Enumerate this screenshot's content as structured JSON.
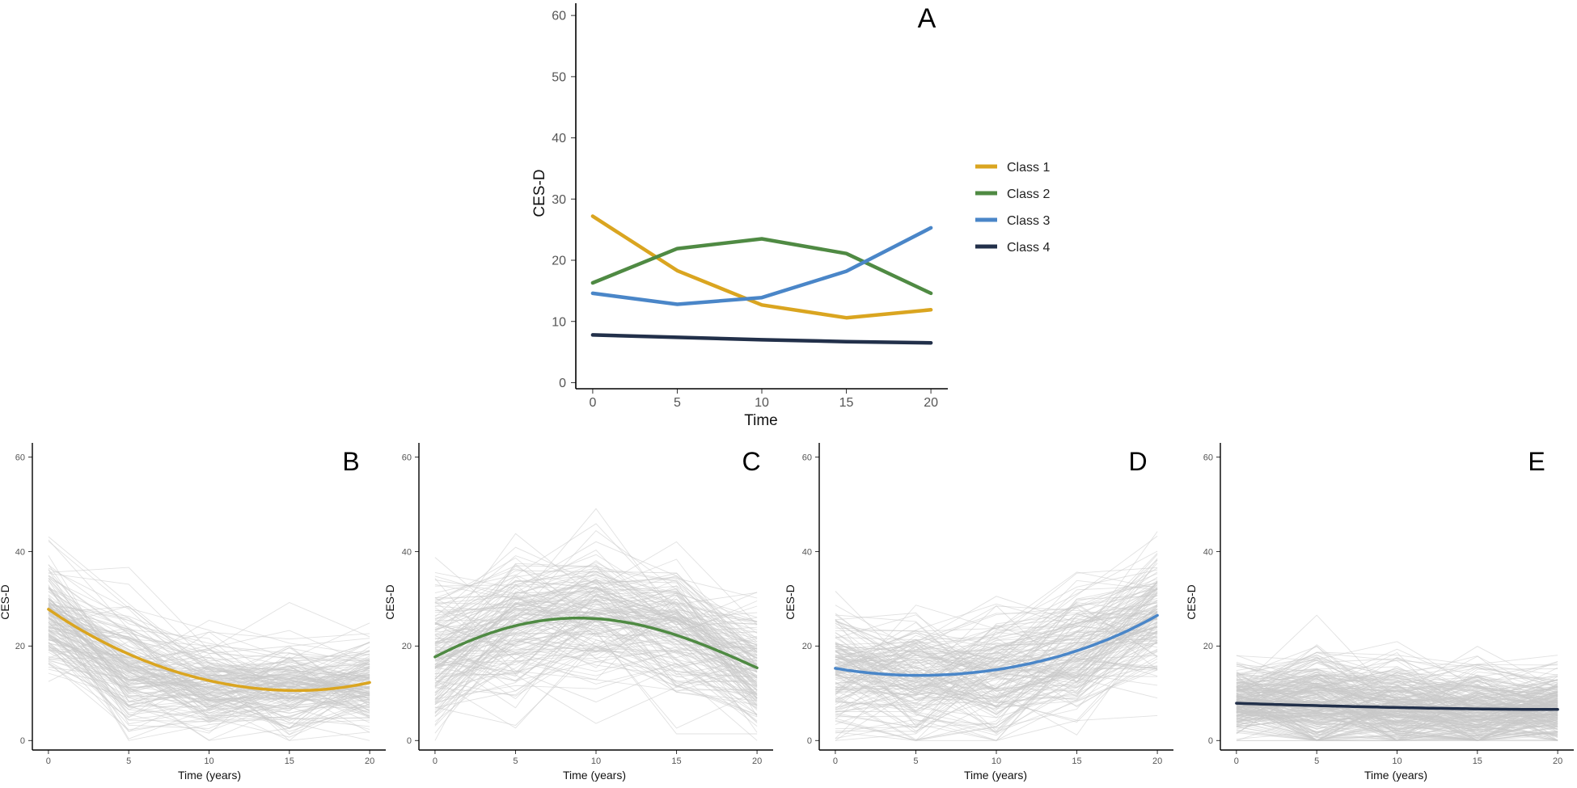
{
  "colors": {
    "class1": "#DAA520",
    "class2": "#4F8A43",
    "class3": "#4A86C8",
    "class4": "#22304A",
    "individual": "#C8C8C8",
    "axis": "#000000"
  },
  "chart_data": [
    {
      "id": "A",
      "type": "line",
      "panel_label": "A",
      "xlabel": "Time",
      "ylabel": "CES-D",
      "x": [
        0,
        5,
        10,
        15,
        20
      ],
      "xticks": [
        0,
        5,
        10,
        15,
        20
      ],
      "yticks": [
        0,
        10,
        20,
        30,
        40,
        50,
        60
      ],
      "xlim": [
        -1,
        21
      ],
      "ylim": [
        -1,
        62
      ],
      "legend": {
        "position": "right",
        "entries": [
          "Class 1",
          "Class 2",
          "Class 3",
          "Class 4"
        ]
      },
      "series": [
        {
          "name": "Class 1",
          "color_key": "class1",
          "values": [
            27.2,
            18.3,
            12.7,
            10.6,
            11.9
          ]
        },
        {
          "name": "Class 2",
          "color_key": "class2",
          "values": [
            16.3,
            21.9,
            23.5,
            21.1,
            14.6
          ]
        },
        {
          "name": "Class 3",
          "color_key": "class3",
          "values": [
            14.6,
            12.8,
            13.9,
            18.2,
            25.3
          ]
        },
        {
          "name": "Class 4",
          "color_key": "class4",
          "values": [
            7.8,
            7.4,
            7.0,
            6.7,
            6.5
          ]
        }
      ]
    },
    {
      "id": "B",
      "type": "line",
      "panel_label": "B",
      "xlabel": "Time (years)",
      "ylabel": "CES-D",
      "xticks": [
        0,
        5,
        10,
        15,
        20
      ],
      "yticks": [
        0,
        20,
        40,
        60
      ],
      "xlim": [
        -1,
        21
      ],
      "ylim": [
        -2,
        63
      ],
      "background": {
        "description": "individual trajectories",
        "count": 160,
        "means": [
          26,
          15,
          12,
          11,
          12
        ],
        "spread": [
          7,
          8,
          6,
          6,
          6
        ],
        "seed": 11
      },
      "fitted": {
        "name": "Class 1",
        "color_key": "class1",
        "x": [
          0,
          5,
          10,
          15,
          20
        ],
        "values": [
          27.8,
          18.3,
          12.7,
          10.6,
          12.3
        ]
      }
    },
    {
      "id": "C",
      "type": "line",
      "panel_label": "C",
      "xlabel": "Time (years)",
      "ylabel": "CES-D",
      "xticks": [
        0,
        5,
        10,
        15,
        20
      ],
      "yticks": [
        0,
        20,
        40,
        60
      ],
      "xlim": [
        -1,
        21
      ],
      "ylim": [
        -2,
        63
      ],
      "background": {
        "description": "individual trajectories",
        "count": 160,
        "means": [
          17,
          24,
          26,
          22,
          15
        ],
        "spread": [
          9,
          9,
          9,
          9,
          8
        ],
        "seed": 23
      },
      "fitted": {
        "name": "Class 2",
        "color_key": "class2",
        "x": [
          0,
          5,
          10,
          15,
          20
        ],
        "values": [
          17.7,
          24.3,
          25.8,
          22.3,
          15.4
        ]
      }
    },
    {
      "id": "D",
      "type": "line",
      "panel_label": "D",
      "xlabel": "Time (years)",
      "ylabel": "CES-D",
      "xticks": [
        0,
        5,
        10,
        15,
        20
      ],
      "yticks": [
        0,
        20,
        40,
        60
      ],
      "xlim": [
        -1,
        21
      ],
      "ylim": [
        -2,
        63
      ],
      "background": {
        "description": "individual trajectories",
        "count": 160,
        "means": [
          15,
          13,
          15,
          19,
          27
        ],
        "spread": [
          8,
          8,
          9,
          8,
          9
        ],
        "seed": 37
      },
      "fitted": {
        "name": "Class 3",
        "color_key": "class3",
        "x": [
          0,
          5,
          10,
          15,
          20
        ],
        "values": [
          15.3,
          13.8,
          15.0,
          19.0,
          26.5
        ]
      }
    },
    {
      "id": "E",
      "type": "line",
      "panel_label": "E",
      "xlabel": "Time (years)",
      "ylabel": "CES-D",
      "xticks": [
        0,
        5,
        10,
        15,
        20
      ],
      "yticks": [
        0,
        20,
        40,
        60
      ],
      "xlim": [
        -1,
        21
      ],
      "ylim": [
        -2,
        63
      ],
      "background": {
        "description": "individual trajectories",
        "count": 260,
        "means": [
          8,
          8,
          7,
          7,
          7
        ],
        "spread": [
          5,
          7,
          6,
          6,
          5
        ],
        "seed": 53
      },
      "fitted": {
        "name": "Class 4",
        "color_key": "class4",
        "x": [
          0,
          5,
          10,
          15,
          20
        ],
        "values": [
          7.9,
          7.4,
          7.0,
          6.7,
          6.6
        ]
      }
    }
  ]
}
